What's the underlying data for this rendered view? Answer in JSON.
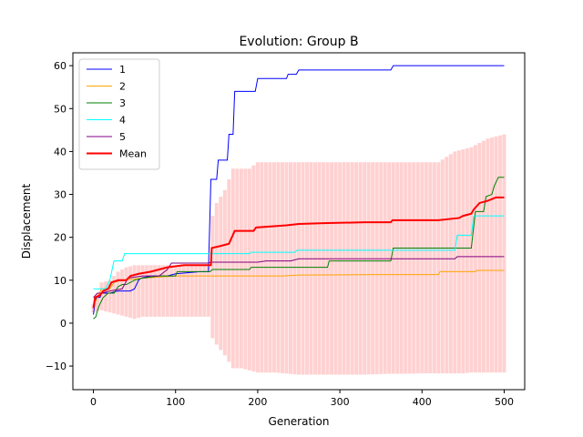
{
  "chart_data": {
    "type": "line",
    "title": "Evolution: Group B",
    "xlabel": "Generation",
    "ylabel": "Displacement",
    "xlim": [
      -25,
      525
    ],
    "ylim": [
      -15.5,
      63
    ],
    "xticks": [
      0,
      100,
      200,
      300,
      400,
      500
    ],
    "yticks": [
      -10,
      0,
      10,
      20,
      30,
      40,
      50,
      60
    ],
    "legend_position": "top-left",
    "grid": false,
    "series": [
      {
        "name": "1",
        "color": "#0000ff",
        "width": 1,
        "points": [
          [
            0,
            2
          ],
          [
            2,
            5
          ],
          [
            4,
            6
          ],
          [
            8,
            6
          ],
          [
            10,
            7
          ],
          [
            20,
            7
          ],
          [
            30,
            7.5
          ],
          [
            45,
            7.5
          ],
          [
            50,
            8
          ],
          [
            55,
            10
          ],
          [
            58,
            10.5
          ],
          [
            70,
            11
          ],
          [
            90,
            11
          ],
          [
            100,
            11.5
          ],
          [
            130,
            12
          ],
          [
            140,
            12
          ],
          [
            143,
            33.5
          ],
          [
            150,
            33.5
          ],
          [
            152,
            38
          ],
          [
            163,
            38
          ],
          [
            165,
            44
          ],
          [
            170,
            44
          ],
          [
            172,
            54
          ],
          [
            197,
            54
          ],
          [
            200,
            57
          ],
          [
            235,
            57
          ],
          [
            237,
            58
          ],
          [
            247,
            58
          ],
          [
            250,
            59
          ],
          [
            362,
            59
          ],
          [
            365,
            60
          ],
          [
            500,
            60
          ]
        ]
      },
      {
        "name": "2",
        "color": "#ffa500",
        "width": 1,
        "points": [
          [
            0,
            4
          ],
          [
            5,
            6
          ],
          [
            10,
            8
          ],
          [
            20,
            8
          ],
          [
            25,
            9.5
          ],
          [
            35,
            10
          ],
          [
            60,
            10.5
          ],
          [
            100,
            11
          ],
          [
            143,
            11
          ],
          [
            230,
            11
          ],
          [
            250,
            11.2
          ],
          [
            340,
            11.3
          ],
          [
            420,
            11.3
          ],
          [
            422,
            12
          ],
          [
            465,
            12
          ],
          [
            467,
            12.3
          ],
          [
            500,
            12.3
          ]
        ]
      },
      {
        "name": "3",
        "color": "#008000",
        "width": 1,
        "points": [
          [
            0,
            1
          ],
          [
            3,
            1.5
          ],
          [
            5,
            3
          ],
          [
            8,
            4.5
          ],
          [
            12,
            6
          ],
          [
            18,
            7
          ],
          [
            25,
            7
          ],
          [
            30,
            8.5
          ],
          [
            35,
            9
          ],
          [
            40,
            9
          ],
          [
            45,
            9.5
          ],
          [
            50,
            10
          ],
          [
            60,
            10.5
          ],
          [
            80,
            11
          ],
          [
            100,
            11
          ],
          [
            102,
            12
          ],
          [
            142,
            12
          ],
          [
            145,
            12.5
          ],
          [
            190,
            12.5
          ],
          [
            192,
            13
          ],
          [
            250,
            13
          ],
          [
            255,
            13
          ],
          [
            285,
            13
          ],
          [
            287,
            14.5
          ],
          [
            362,
            14.5
          ],
          [
            365,
            17.5
          ],
          [
            460,
            17.5
          ],
          [
            465,
            26
          ],
          [
            475,
            26
          ],
          [
            478,
            29.5
          ],
          [
            485,
            30
          ],
          [
            488,
            32
          ],
          [
            493,
            34
          ],
          [
            500,
            34
          ]
        ]
      },
      {
        "name": "4",
        "color": "#00ffff",
        "width": 1,
        "points": [
          [
            0,
            8
          ],
          [
            5,
            8
          ],
          [
            15,
            8
          ],
          [
            20,
            10
          ],
          [
            25,
            14.5
          ],
          [
            35,
            14.5
          ],
          [
            38,
            16.2
          ],
          [
            143,
            16.2
          ],
          [
            190,
            16.2
          ],
          [
            192,
            16.5
          ],
          [
            245,
            16.5
          ],
          [
            248,
            17
          ],
          [
            440,
            17
          ],
          [
            443,
            20.5
          ],
          [
            460,
            20.5
          ],
          [
            463,
            25
          ],
          [
            500,
            25
          ]
        ]
      },
      {
        "name": "5",
        "color": "#800080",
        "width": 1,
        "points": [
          [
            0,
            6
          ],
          [
            5,
            7
          ],
          [
            10,
            7
          ],
          [
            20,
            7.5
          ],
          [
            35,
            8
          ],
          [
            42,
            10.5
          ],
          [
            60,
            11
          ],
          [
            80,
            11
          ],
          [
            90,
            12.5
          ],
          [
            95,
            14
          ],
          [
            140,
            14
          ],
          [
            143,
            14.2
          ],
          [
            200,
            14.2
          ],
          [
            210,
            14.5
          ],
          [
            240,
            14.5
          ],
          [
            250,
            15
          ],
          [
            440,
            15
          ],
          [
            443,
            15.5
          ],
          [
            500,
            15.5
          ]
        ]
      },
      {
        "name": "Mean",
        "color": "#ff0000",
        "width": 2,
        "points": [
          [
            0,
            3.5
          ],
          [
            2,
            6
          ],
          [
            8,
            6.5
          ],
          [
            12,
            7.5
          ],
          [
            18,
            8
          ],
          [
            22,
            9.5
          ],
          [
            30,
            10
          ],
          [
            40,
            10
          ],
          [
            45,
            11
          ],
          [
            55,
            11.5
          ],
          [
            70,
            12
          ],
          [
            80,
            12.5
          ],
          [
            90,
            13
          ],
          [
            110,
            13.5
          ],
          [
            143,
            13.5
          ],
          [
            144,
            17.5
          ],
          [
            155,
            18
          ],
          [
            165,
            18.5
          ],
          [
            172,
            21.5
          ],
          [
            195,
            21.5
          ],
          [
            198,
            22.3
          ],
          [
            235,
            22.8
          ],
          [
            250,
            23.1
          ],
          [
            280,
            23.3
          ],
          [
            330,
            23.5
          ],
          [
            362,
            23.5
          ],
          [
            364,
            24
          ],
          [
            420,
            24
          ],
          [
            445,
            24.5
          ],
          [
            450,
            25
          ],
          [
            460,
            25.5
          ],
          [
            463,
            26.5
          ],
          [
            470,
            28
          ],
          [
            480,
            28.5
          ],
          [
            490,
            29.3
          ],
          [
            500,
            29.3
          ]
        ]
      }
    ],
    "mean_band": {
      "color": "#ff0000",
      "opacity": 0.18,
      "x": [
        0,
        10,
        20,
        30,
        40,
        50,
        60,
        70,
        80,
        90,
        100,
        110,
        120,
        130,
        140,
        145,
        150,
        160,
        170,
        180,
        190,
        200,
        220,
        250,
        280,
        300,
        330,
        360,
        380,
        400,
        420,
        440,
        450,
        460,
        470,
        480,
        490,
        500
      ],
      "lower": [
        2.5,
        3,
        2.5,
        2,
        1.5,
        1,
        1.5,
        1.5,
        1.5,
        1.5,
        1.5,
        1.5,
        1.5,
        1.5,
        1.5,
        -3.5,
        -5,
        -7.5,
        -10.5,
        -10.5,
        -11,
        -11.5,
        -11.5,
        -12,
        -12,
        -12,
        -12,
        -11.8,
        -11.8,
        -11.7,
        -11.7,
        -11.7,
        -11.7,
        -11.5,
        -11.5,
        -11.5,
        -11.5,
        -11.5
      ],
      "upper": [
        4.5,
        9.5,
        10,
        12,
        13,
        13.5,
        13.5,
        13.5,
        13.5,
        13.5,
        13.5,
        13.5,
        13.5,
        13.5,
        13.5,
        25,
        28,
        31,
        36,
        36,
        36,
        37.5,
        37.5,
        37.5,
        37.5,
        37.5,
        37.5,
        37.5,
        37.5,
        37.5,
        37.5,
        40,
        40.5,
        41,
        42,
        43,
        43.5,
        44
      ]
    }
  }
}
